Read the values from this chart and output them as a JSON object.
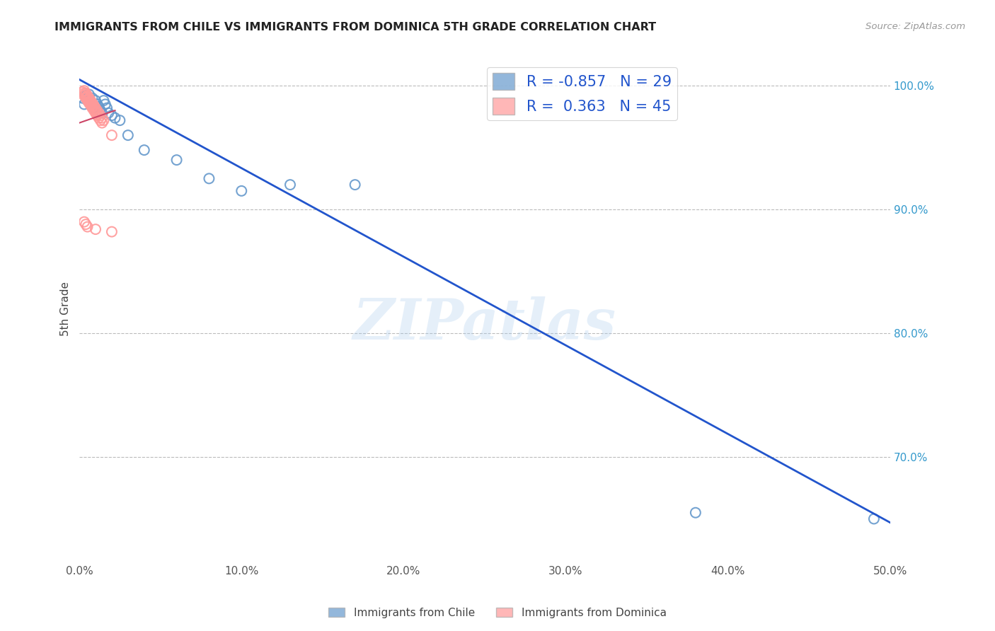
{
  "title": "IMMIGRANTS FROM CHILE VS IMMIGRANTS FROM DOMINICA 5TH GRADE CORRELATION CHART",
  "source": "Source: ZipAtlas.com",
  "ylabel": "5th Grade",
  "ytick_labels": [
    "100.0%",
    "90.0%",
    "80.0%",
    "70.0%"
  ],
  "ytick_values": [
    1.0,
    0.9,
    0.8,
    0.7
  ],
  "xlim": [
    0.0,
    0.5
  ],
  "ylim": [
    0.615,
    1.025
  ],
  "legend_blue_R": "-0.857",
  "legend_blue_N": "29",
  "legend_pink_R": "0.363",
  "legend_pink_N": "45",
  "legend_label_blue": "Immigrants from Chile",
  "legend_label_pink": "Immigrants from Dominica",
  "blue_color": "#6699CC",
  "pink_color": "#FF9999",
  "line_blue_color": "#2255CC",
  "line_pink_color": "#CC4466",
  "blue_scatter_x": [
    0.002,
    0.003,
    0.004,
    0.005,
    0.006,
    0.007,
    0.008,
    0.009,
    0.01,
    0.011,
    0.012,
    0.013,
    0.014,
    0.015,
    0.016,
    0.017,
    0.018,
    0.02,
    0.022,
    0.025,
    0.03,
    0.04,
    0.06,
    0.08,
    0.1,
    0.13,
    0.17,
    0.38,
    0.49
  ],
  "blue_scatter_y": [
    0.99,
    0.985,
    0.992,
    0.988,
    0.993,
    0.986,
    0.99,
    0.982,
    0.988,
    0.985,
    0.983,
    0.98,
    0.978,
    0.988,
    0.985,
    0.982,
    0.978,
    0.976,
    0.974,
    0.972,
    0.96,
    0.948,
    0.94,
    0.925,
    0.915,
    0.92,
    0.92,
    0.655,
    0.65
  ],
  "pink_scatter_x": [
    0.002,
    0.003,
    0.004,
    0.005,
    0.006,
    0.007,
    0.008,
    0.009,
    0.01,
    0.011,
    0.012,
    0.013,
    0.014,
    0.003,
    0.004,
    0.005,
    0.006,
    0.007,
    0.008,
    0.009,
    0.01,
    0.004,
    0.005,
    0.006,
    0.007,
    0.008,
    0.003,
    0.004,
    0.005,
    0.006,
    0.007,
    0.008,
    0.009,
    0.01,
    0.011,
    0.012,
    0.013,
    0.014,
    0.015,
    0.02,
    0.003,
    0.004,
    0.005,
    0.01,
    0.02
  ],
  "pink_scatter_y": [
    0.995,
    0.992,
    0.99,
    0.988,
    0.986,
    0.984,
    0.982,
    0.98,
    0.978,
    0.976,
    0.974,
    0.972,
    0.97,
    0.994,
    0.991,
    0.989,
    0.987,
    0.985,
    0.983,
    0.981,
    0.979,
    0.993,
    0.991,
    0.989,
    0.987,
    0.985,
    0.996,
    0.994,
    0.992,
    0.99,
    0.988,
    0.986,
    0.984,
    0.982,
    0.98,
    0.978,
    0.976,
    0.974,
    0.972,
    0.96,
    0.89,
    0.888,
    0.886,
    0.884,
    0.882
  ],
  "blue_line_x": [
    0.0,
    0.5
  ],
  "blue_line_y": [
    1.005,
    0.647
  ],
  "pink_line_x": [
    0.0,
    0.022
  ],
  "pink_line_y": [
    0.97,
    0.98
  ],
  "watermark": "ZIPatlas",
  "background_color": "#ffffff",
  "grid_color": "#bbbbbb"
}
